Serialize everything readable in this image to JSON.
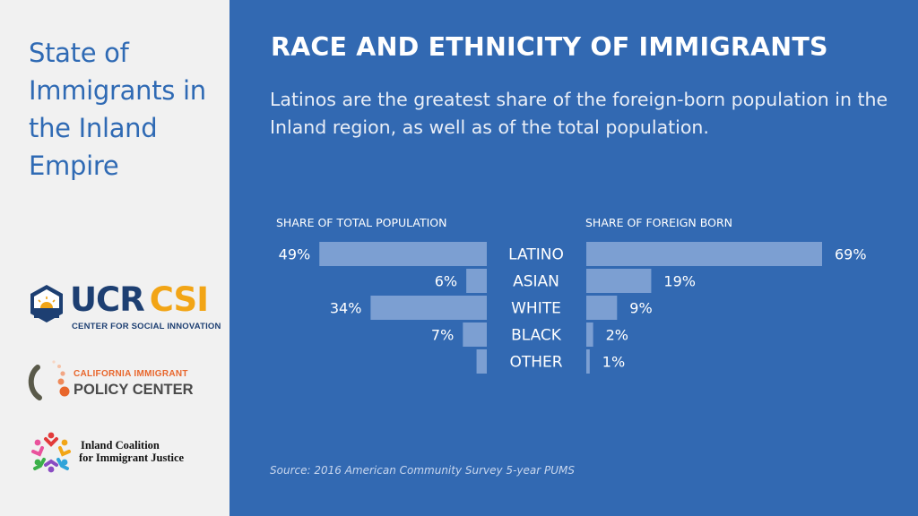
{
  "sidebar": {
    "title": "State of Immigrants in the Inland Empire",
    "logos": {
      "ucr": {
        "word_left": "UCR",
        "word_right": "CSI",
        "subtitle": "CENTER FOR SOCIAL INNOVATION",
        "navy": "#1d3f72",
        "gold": "#f2a516"
      },
      "cipc": {
        "line1": "CALIFORNIA IMMIGRANT",
        "line2": "POLICY CENTER",
        "orange": "#e8662c"
      },
      "icij": {
        "line1": "Inland Coalition",
        "line2": "for Immigrant Justice"
      }
    }
  },
  "main": {
    "headline": "RACE AND ETHNICITY OF IMMIGRANTS",
    "subtitle": "Latinos are the greatest share of the foreign-born population in the Inland region, as well as of the total population.",
    "source": "Source: 2016 American Community Survey 5-year PUMS"
  },
  "colors": {
    "panel": "#3269b2",
    "bar": "#7c9fd2",
    "sidebar_text": "#2f6ab4"
  },
  "chart_data": {
    "type": "bar",
    "orientation": "horizontal-back-to-back",
    "categories": [
      "LATINO",
      "ASIAN",
      "WHITE",
      "BLACK",
      "OTHER"
    ],
    "series": [
      {
        "name": "SHARE OF TOTAL POPULATION",
        "values": [
          49,
          6,
          34,
          7,
          3
        ],
        "labels": [
          "49%",
          "6%",
          "34%",
          "7%",
          ""
        ]
      },
      {
        "name": "SHARE OF FOREIGN BORN",
        "values": [
          69,
          19,
          9,
          2,
          1
        ],
        "labels": [
          "69%",
          "19%",
          "9%",
          "2%",
          "1%"
        ]
      }
    ],
    "unit": "%",
    "grid": false
  }
}
